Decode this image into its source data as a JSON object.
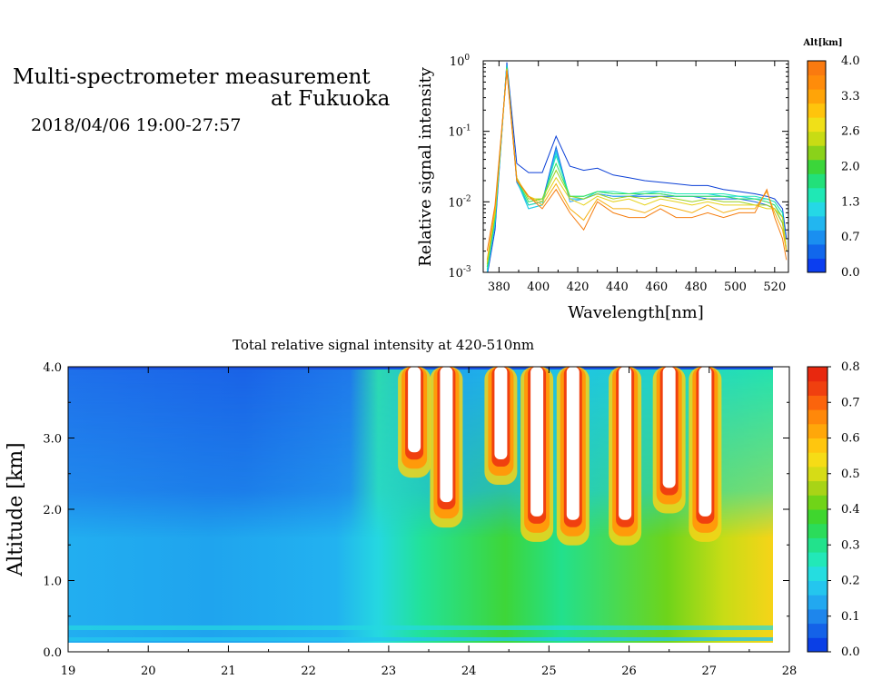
{
  "header": {
    "title_line1": "Multi-spectrometer measurement",
    "title_line2": "at Fukuoka",
    "datetime": "2018/04/06 19:00-27:57"
  },
  "chart_data": [
    {
      "type": "line",
      "name": "spectra",
      "xlabel": "Wavelength[nm]",
      "ylabel": "Relative signal intensity",
      "xlim": [
        372,
        527
      ],
      "ylim": [
        0.001,
        1
      ],
      "yscale": "log",
      "xticks": [
        380,
        400,
        420,
        440,
        460,
        480,
        500,
        520
      ],
      "yticks": [
        {
          "value": 0.001,
          "base": "10",
          "exp": "-3"
        },
        {
          "value": 0.01,
          "base": "10",
          "exp": "-2"
        },
        {
          "value": 0.1,
          "base": "10",
          "exp": "-1"
        },
        {
          "value": 1,
          "base": "10",
          "exp": "0"
        }
      ],
      "x": [
        374,
        378,
        384,
        389,
        395,
        402,
        409,
        416,
        423,
        430,
        438,
        446,
        454,
        462,
        470,
        478,
        486,
        494,
        502,
        510,
        516,
        520,
        524,
        526
      ],
      "series": [
        {
          "alt": 0.0,
          "color": "#0a3fd6",
          "values": [
            0.0009,
            0.004,
            0.95,
            0.035,
            0.026,
            0.026,
            0.085,
            0.032,
            0.028,
            0.03,
            0.024,
            0.022,
            0.02,
            0.019,
            0.018,
            0.017,
            0.017,
            0.015,
            0.014,
            0.013,
            0.012,
            0.011,
            0.008,
            0.003
          ]
        },
        {
          "alt": 0.35,
          "color": "#1566e6",
          "values": [
            0.001,
            0.005,
            0.9,
            0.019,
            0.009,
            0.01,
            0.06,
            0.011,
            0.011,
            0.013,
            0.012,
            0.012,
            0.012,
            0.012,
            0.012,
            0.012,
            0.011,
            0.011,
            0.011,
            0.01,
            0.009,
            0.008,
            0.005,
            0.002
          ]
        },
        {
          "alt": 0.7,
          "color": "#2da6f2",
          "values": [
            0.001,
            0.005,
            0.88,
            0.02,
            0.008,
            0.009,
            0.055,
            0.01,
            0.011,
            0.013,
            0.012,
            0.012,
            0.013,
            0.013,
            0.012,
            0.012,
            0.012,
            0.012,
            0.011,
            0.011,
            0.01,
            0.009,
            0.006,
            0.002
          ]
        },
        {
          "alt": 1.0,
          "color": "#22d0e6",
          "values": [
            0.001,
            0.005,
            0.85,
            0.02,
            0.008,
            0.009,
            0.05,
            0.011,
            0.011,
            0.014,
            0.013,
            0.013,
            0.013,
            0.014,
            0.013,
            0.013,
            0.013,
            0.012,
            0.012,
            0.011,
            0.011,
            0.01,
            0.007,
            0.002
          ]
        },
        {
          "alt": 1.3,
          "color": "#1fe6b4",
          "values": [
            0.0011,
            0.006,
            0.83,
            0.021,
            0.009,
            0.01,
            0.045,
            0.012,
            0.012,
            0.014,
            0.014,
            0.013,
            0.014,
            0.014,
            0.013,
            0.013,
            0.013,
            0.013,
            0.012,
            0.012,
            0.011,
            0.01,
            0.007,
            0.002
          ]
        },
        {
          "alt": 1.65,
          "color": "#37e35a",
          "values": [
            0.0012,
            0.006,
            0.8,
            0.021,
            0.01,
            0.011,
            0.035,
            0.012,
            0.012,
            0.014,
            0.013,
            0.013,
            0.013,
            0.013,
            0.012,
            0.012,
            0.012,
            0.012,
            0.011,
            0.011,
            0.01,
            0.009,
            0.006,
            0.002
          ]
        },
        {
          "alt": 2.0,
          "color": "#9ad21f",
          "values": [
            0.0013,
            0.007,
            0.78,
            0.022,
            0.011,
            0.011,
            0.028,
            0.012,
            0.011,
            0.013,
            0.011,
            0.012,
            0.011,
            0.012,
            0.011,
            0.01,
            0.011,
            0.01,
            0.01,
            0.009,
            0.009,
            0.008,
            0.005,
            0.002
          ]
        },
        {
          "alt": 2.6,
          "color": "#e6d21a",
          "values": [
            0.0014,
            0.007,
            0.76,
            0.021,
            0.012,
            0.01,
            0.022,
            0.011,
            0.009,
            0.012,
            0.01,
            0.011,
            0.009,
            0.011,
            0.01,
            0.009,
            0.01,
            0.009,
            0.009,
            0.009,
            0.008,
            0.008,
            0.006,
            0.002
          ]
        },
        {
          "alt": 3.3,
          "color": "#f5b010",
          "values": [
            0.0015,
            0.008,
            0.74,
            0.021,
            0.012,
            0.009,
            0.018,
            0.008,
            0.0055,
            0.011,
            0.008,
            0.008,
            0.007,
            0.009,
            0.008,
            0.007,
            0.009,
            0.007,
            0.008,
            0.008,
            0.014,
            0.007,
            0.004,
            0.002
          ]
        },
        {
          "alt": 4.0,
          "color": "#f57d0f",
          "values": [
            0.002,
            0.009,
            0.72,
            0.02,
            0.012,
            0.008,
            0.015,
            0.007,
            0.004,
            0.01,
            0.007,
            0.006,
            0.006,
            0.008,
            0.006,
            0.006,
            0.007,
            0.006,
            0.007,
            0.007,
            0.015,
            0.006,
            0.003,
            0.0015
          ]
        }
      ]
    },
    {
      "type": "heatmap",
      "name": "total_intensity",
      "title": "Total relative signal intensity at 420-510nm",
      "ylabel": "Altitude [km]",
      "xlim": [
        19,
        28
      ],
      "ylim": [
        0,
        4
      ],
      "xticks": [
        "19",
        "20",
        "21",
        "22",
        "23",
        "24",
        "25",
        "26",
        "27",
        "28"
      ],
      "yticks": [
        "0.0",
        "1.0",
        "2.0",
        "3.0",
        "4.0"
      ],
      "data_xrange": [
        19,
        27.95
      ],
      "data_yrange": [
        0.15,
        4.0
      ],
      "clouds": [
        {
          "x": 23.32,
          "top": 4.0,
          "bottom": 2.8
        },
        {
          "x": 23.72,
          "top": 4.0,
          "bottom": 2.1
        },
        {
          "x": 24.4,
          "top": 4.0,
          "bottom": 2.7
        },
        {
          "x": 24.85,
          "top": 4.0,
          "bottom": 1.9
        },
        {
          "x": 25.3,
          "top": 4.0,
          "bottom": 1.85
        },
        {
          "x": 25.95,
          "top": 4.0,
          "bottom": 1.85
        },
        {
          "x": 26.5,
          "top": 4.0,
          "bottom": 2.3
        },
        {
          "x": 26.95,
          "top": 4.0,
          "bottom": 1.9
        }
      ]
    }
  ],
  "colorbars": {
    "altitude": {
      "title": "Alt[km]",
      "labels": [
        "0.0",
        "0.7",
        "1.3",
        "2.0",
        "2.6",
        "3.3",
        "4.0"
      ],
      "colors": [
        "#0b3ef0",
        "#1167ec",
        "#1a8ff0",
        "#22b6f0",
        "#25d8e6",
        "#1fe8b5",
        "#22e07a",
        "#3bd63a",
        "#8ad21a",
        "#c8dc14",
        "#f0e018",
        "#ffc40c",
        "#ffa408",
        "#ff8c0a",
        "#fa7a0f"
      ]
    },
    "intensity": {
      "labels": [
        "0.0",
        "0.1",
        "0.2",
        "0.3",
        "0.4",
        "0.5",
        "0.6",
        "0.7",
        "0.8"
      ],
      "colors": [
        "#0a3fe6",
        "#1462e8",
        "#1e86ec",
        "#22a8f0",
        "#24c6ee",
        "#25dde0",
        "#22e8b8",
        "#22e28c",
        "#2bdc5a",
        "#3fd62e",
        "#70d418",
        "#a8d416",
        "#d6dc16",
        "#f6dc16",
        "#ffc60e",
        "#ffa70a",
        "#ff880a",
        "#fb640c",
        "#f0400f",
        "#e8280f"
      ]
    }
  }
}
